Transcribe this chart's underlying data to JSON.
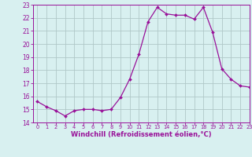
{
  "x": [
    0,
    1,
    2,
    3,
    4,
    5,
    6,
    7,
    8,
    9,
    10,
    11,
    12,
    13,
    14,
    15,
    16,
    17,
    18,
    19,
    20,
    21,
    22,
    23
  ],
  "y": [
    15.6,
    15.2,
    14.9,
    14.5,
    14.9,
    15.0,
    15.0,
    14.9,
    15.0,
    15.9,
    17.3,
    19.2,
    21.7,
    22.8,
    22.3,
    22.2,
    22.2,
    21.9,
    22.8,
    20.9,
    18.1,
    17.3,
    16.8,
    16.7
  ],
  "line_color": "#991199",
  "marker": "D",
  "marker_size": 2.0,
  "bg_color": "#d8f0f0",
  "grid_color": "#b0c8c8",
  "xlabel": "Windchill (Refroidissement éolien,°C)",
  "xlabel_color": "#991199",
  "tick_color": "#991199",
  "spine_color": "#991199",
  "ylim": [
    14,
    23
  ],
  "xlim": [
    -0.5,
    23
  ],
  "yticks": [
    14,
    15,
    16,
    17,
    18,
    19,
    20,
    21,
    22,
    23
  ],
  "xticks": [
    0,
    1,
    2,
    3,
    4,
    5,
    6,
    7,
    8,
    9,
    10,
    11,
    12,
    13,
    14,
    15,
    16,
    17,
    18,
    19,
    20,
    21,
    22,
    23
  ],
  "xtick_fontsize": 4.8,
  "ytick_fontsize": 5.5,
  "xlabel_fontsize": 6.0
}
